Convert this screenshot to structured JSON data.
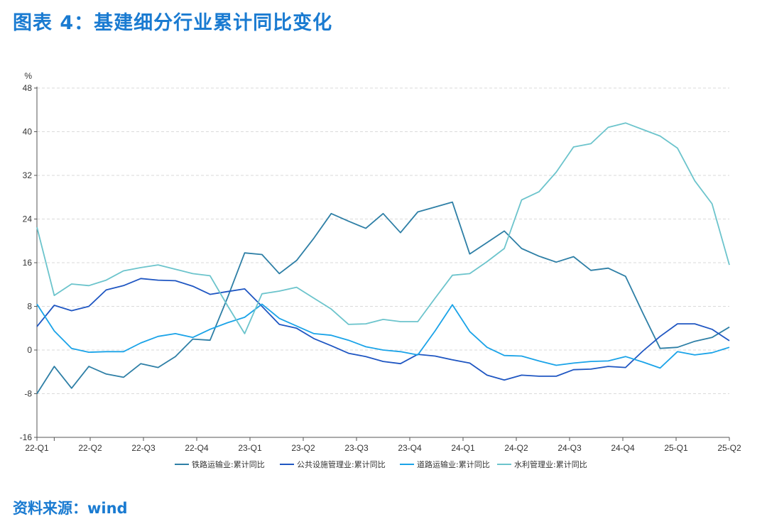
{
  "page": {
    "title": "图表 4：基建细分行业累计同比变化",
    "source": "资料来源：wind"
  },
  "chart_data": {
    "type": "line",
    "unit": "%",
    "ylim": [
      -16,
      48
    ],
    "yticks": [
      -16,
      -8,
      0,
      8,
      16,
      24,
      32,
      40,
      48
    ],
    "xlabels": [
      "22-Q1",
      "22-Q2",
      "22-Q3",
      "22-Q4",
      "23-Q1",
      "23-Q2",
      "23-Q3",
      "23-Q4",
      "24-Q1",
      "24-Q2",
      "24-Q3",
      "24-Q4",
      "25-Q1",
      "25-Q2"
    ],
    "grid": "horizontal-dashed",
    "legend": "bottom",
    "series": [
      {
        "name": "铁路运输业:累计同比",
        "color": "#2e7fa6",
        "values": [
          -8.0,
          -3.0,
          -7.0,
          -3.0,
          -4.4,
          -5.0,
          -2.5,
          -3.2,
          -1.2,
          2.0,
          1.8,
          9.5,
          17.8,
          17.5,
          14.0,
          16.4,
          20.5,
          25.0,
          23.6,
          22.3,
          25.0,
          21.5,
          25.3,
          26.2,
          27.1,
          17.6,
          19.7,
          21.8,
          18.6,
          17.2,
          16.1,
          17.1,
          14.6,
          15.0,
          13.5,
          6.8,
          0.3,
          0.5,
          1.6,
          2.3,
          4.2
        ]
      },
      {
        "name": "公共设施管理业:累计同比",
        "color": "#1f56c2",
        "values": [
          4.3,
          8.2,
          7.2,
          8.0,
          11.0,
          11.8,
          13.1,
          12.8,
          12.7,
          11.7,
          10.2,
          10.7,
          11.2,
          8.0,
          4.7,
          4.0,
          2.1,
          0.8,
          -0.6,
          -1.2,
          -2.1,
          -2.5,
          -0.8,
          -1.1,
          -1.8,
          -2.4,
          -4.6,
          -5.5,
          -4.6,
          -4.8,
          -4.8,
          -3.6,
          -3.5,
          -3.0,
          -3.2,
          -0.2,
          2.5,
          4.8,
          4.8,
          3.8,
          1.7
        ]
      },
      {
        "name": "道路运输业:累计同比",
        "color": "#1aa3e8",
        "values": [
          8.4,
          3.5,
          0.3,
          -0.4,
          -0.3,
          -0.3,
          1.3,
          2.5,
          3.0,
          2.3,
          3.8,
          5.0,
          6.0,
          8.4,
          5.8,
          4.4,
          3.0,
          2.7,
          1.8,
          0.6,
          0.0,
          -0.3,
          -0.9,
          3.5,
          8.3,
          3.4,
          0.5,
          -1.0,
          -1.1,
          -2.0,
          -2.8,
          -2.4,
          -2.1,
          -2.0,
          -1.2,
          -2.2,
          -3.3,
          -0.3,
          -0.9,
          -0.5,
          0.5
        ]
      },
      {
        "name": "水利管理业:累计同比",
        "color": "#6cc4cc",
        "values": [
          22.5,
          10.0,
          12.1,
          11.8,
          12.8,
          14.5,
          15.1,
          15.6,
          14.8,
          14.0,
          13.6,
          8.2,
          3.0,
          10.3,
          10.8,
          11.5,
          9.5,
          7.5,
          4.7,
          4.8,
          5.6,
          5.2,
          5.2,
          9.5,
          13.7,
          14.0,
          16.2,
          18.6,
          27.5,
          29.0,
          32.6,
          37.2,
          37.8,
          40.8,
          41.6,
          40.4,
          39.2,
          37.0,
          31.0,
          26.8,
          15.6
        ]
      }
    ]
  }
}
